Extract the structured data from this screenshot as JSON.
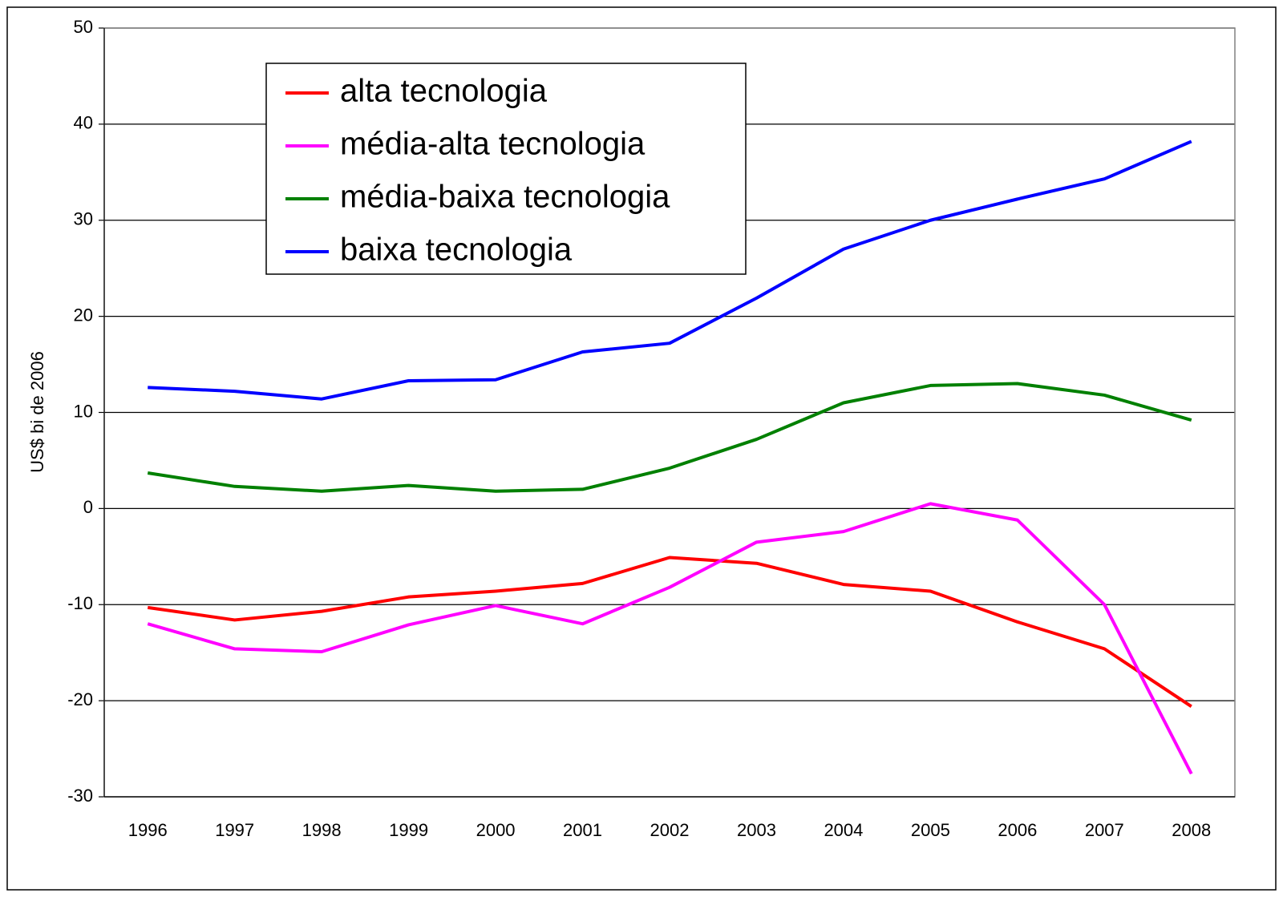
{
  "chart_data": {
    "type": "line",
    "ylabel": "US$ bi de 2006",
    "categories": [
      "1996",
      "1997",
      "1998",
      "1999",
      "2000",
      "2001",
      "2002",
      "2003",
      "2004",
      "2005",
      "2006",
      "2007",
      "2008"
    ],
    "series": [
      {
        "name": "alta tecnologia",
        "color": "#ff0000",
        "values": [
          -10.3,
          -11.6,
          -10.7,
          -9.2,
          -8.6,
          -7.8,
          -5.1,
          -5.7,
          -7.9,
          -8.6,
          -11.8,
          -14.6,
          -20.6
        ]
      },
      {
        "name": "média-alta tecnologia",
        "color": "#ff00ff",
        "values": [
          -12.0,
          -14.6,
          -14.9,
          -12.1,
          -10.1,
          -12.0,
          -8.2,
          -3.5,
          -2.4,
          0.5,
          -1.2,
          -10.0,
          -27.6
        ]
      },
      {
        "name": "média-baixa tecnologia",
        "color": "#008000",
        "values": [
          3.7,
          2.3,
          1.8,
          2.4,
          1.8,
          2.0,
          4.2,
          7.2,
          11.0,
          12.8,
          13.0,
          11.8,
          9.2
        ]
      },
      {
        "name": "baixa tecnologia",
        "color": "#0000ff",
        "values": [
          12.6,
          12.2,
          11.4,
          13.3,
          13.4,
          16.3,
          17.2,
          21.9,
          27.0,
          30.0,
          32.2,
          34.3,
          38.2
        ]
      }
    ],
    "ylim": [
      -30,
      50
    ],
    "yticks": [
      -30,
      -20,
      -10,
      0,
      10,
      20,
      30,
      40,
      50
    ],
    "grid": true,
    "legend": "upper left"
  }
}
